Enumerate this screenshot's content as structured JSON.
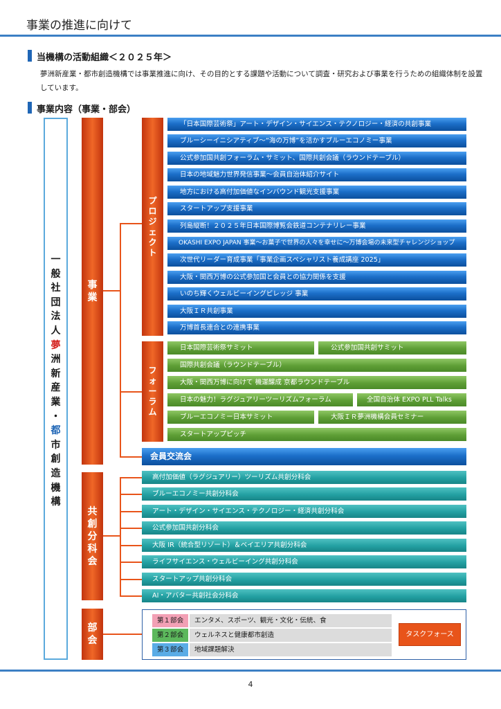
{
  "header": {
    "title": "事業の推進に向けて"
  },
  "section1": {
    "heading": "当機構の活動組織＜２０２５年＞",
    "intro": "夢洲新産業・都市創造機構では事業推進に向け、その目的とする課題や活動について調査・研究および事業を行うための組織体制を設置しています。"
  },
  "section2": {
    "heading": "事業内容（事業・部会）"
  },
  "org": {
    "prefix": [
      "一",
      "般",
      "社",
      "団",
      "法",
      "人"
    ],
    "red_part": [
      "夢"
    ],
    "mid_part": [
      "洲",
      "新",
      "産",
      "業",
      "・"
    ],
    "blue_part": [
      "都"
    ],
    "suffix": [
      "市",
      "創",
      "造",
      "機",
      "構"
    ]
  },
  "labels": {
    "business": [
      "事",
      "業"
    ],
    "project": [
      "プ",
      "ロ",
      "ジ",
      "ェ",
      "ク",
      "ト"
    ],
    "forum": [
      "フ",
      "ォ",
      "ー",
      "ラ",
      "ム"
    ],
    "subcommittee": [
      "共",
      "創",
      "分",
      "科",
      "会"
    ],
    "department": [
      "部",
      "会"
    ]
  },
  "projects": [
    "「日本国際芸術祭」アート・デザイン・サイエンス・テクノロジー・経済の共創事業",
    "ブルーシーイニシアティブ〜“海の万博”を活かすブルーエコノミー事業",
    "公式参加国共創フォーラム・サミット、国際共創会議（ラウンドテーブル）",
    "日本の地域魅力世界発信事業〜会員自治体紹介サイト",
    "地方における高付加価値なインバウンド観光支援事業",
    "スタートアップ支援事業",
    "列島縦断！２０２５年日本国際博覧会鉄道コンテナリレー事業",
    "OKASHI EXPO JAPAN 事業〜お菓子で世界の人々を幸せに〜万博会場の未来型チャレンジショップ",
    "次世代リーダー育成事業「事業企画スペシャリスト養成講座 2025」",
    "大阪・関西万博の公式参加国と会員との協力関係を支援",
    "いのち輝くウェルビーイングビレッジ 事業",
    "大阪ＩＲ共創事業",
    "万博首長連合との連携事業"
  ],
  "forums": {
    "row1": [
      "日本国際芸術祭サミット",
      "公式参加国共創サミット"
    ],
    "row2": [
      "国際共創会議（ラウンドテーブル）"
    ],
    "row3": [
      "大阪・関西万博に向けて 機運醸成 京都ラウンドテーブル"
    ],
    "row4": [
      "日本の魅力！ラグジュアリーツーリズムフォーラム",
      "全国自治体 EXPO PLL Talks"
    ],
    "row5": [
      "ブルーエコノミー日本サミット",
      "大阪ＩＲ夢洲機構会員セミナー"
    ],
    "row6": [
      "スタートアップピッチ"
    ]
  },
  "members_exchange": "会員交流会",
  "subcommittees": [
    "高付加価値（ラグジュアリー）ツーリズム共創分科会",
    "ブルーエコノミー共創分科会",
    "アート・デザイン・サイエンス・テクノロジー・経済共創分科会",
    "公式参加国共創分科会",
    "大阪 IR（統合型リゾート）＆ベイエリア共創分科会",
    "ライフサイエンス・ウェルビーイング共創分科会",
    "スタートアップ共創分科会",
    "AI・アバター共創社会分科会"
  ],
  "departments": [
    {
      "tag": "第１部会",
      "desc": "エンタメ、スポーツ、観光・文化・伝統、食",
      "color": "#f2a0b5"
    },
    {
      "tag": "第２部会",
      "desc": "ウェルネスと健康都市創造",
      "color": "#5cb85c"
    },
    {
      "tag": "第３部会",
      "desc": "地域課題解決",
      "color": "#5aace6"
    }
  ],
  "taskforce": "タスクフォース",
  "footer": {
    "page_number": "4"
  },
  "colors": {
    "accent_blue": "#1f66b6",
    "orange": "#e8541a",
    "green": "#5e9e36",
    "teal": "#23a0a2"
  }
}
